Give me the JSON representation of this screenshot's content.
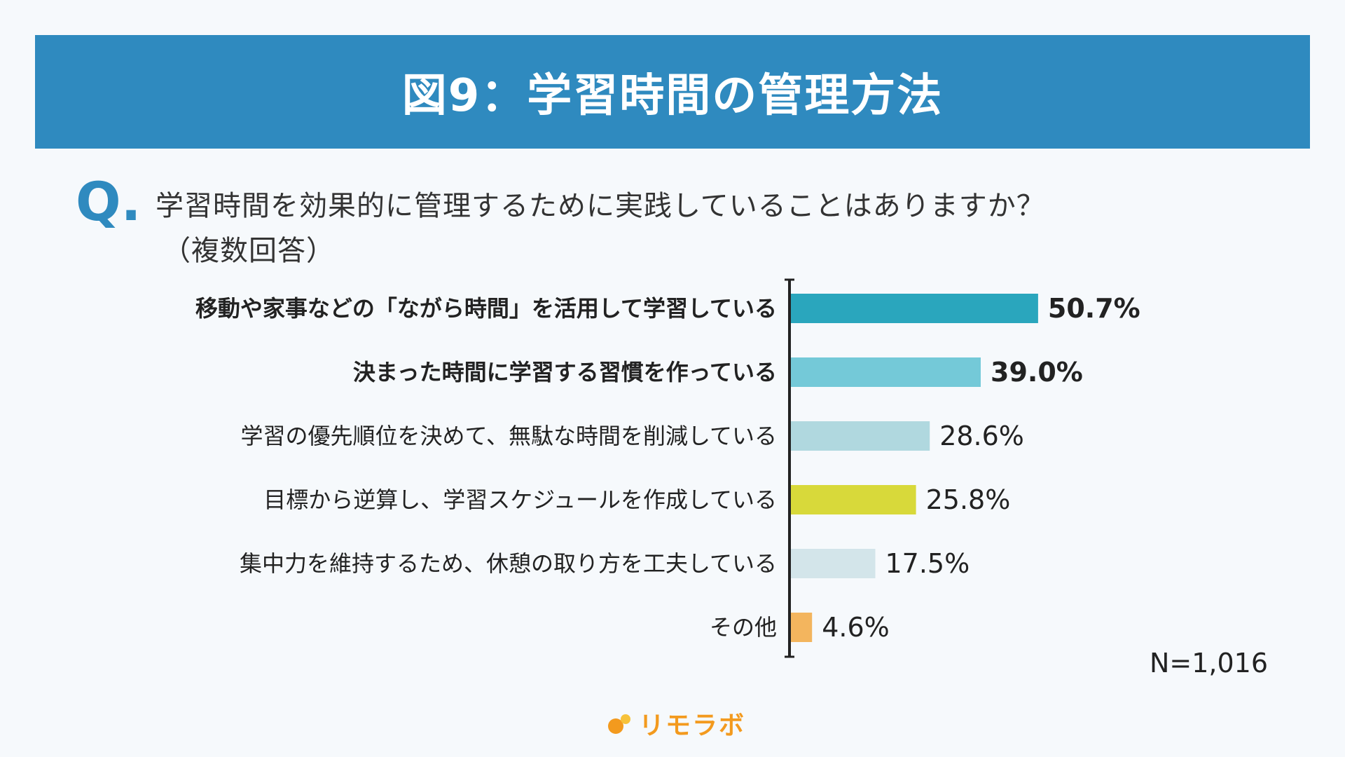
{
  "header": {
    "title": "図9：学習時間の管理方法"
  },
  "question": {
    "mark": "Q",
    "text": "学習時間を効果的に管理するために実践していることはありますか？",
    "note": "（複数回答）"
  },
  "chart_data": {
    "type": "bar",
    "orientation": "horizontal",
    "categories": [
      "移動や家事などの「ながら時間」を活用して学習している",
      "決まった時間に学習する習慣を作っている",
      "学習の優先順位を決めて、無駄な時間を削減している",
      "目標から逆算し、学習スケジュールを作成している",
      "集中力を維持するため、休憩の取り方を工夫している",
      "その他"
    ],
    "values": [
      50.7,
      39.0,
      28.6,
      25.8,
      17.5,
      4.6
    ],
    "value_labels": [
      "50.7%",
      "39.0%",
      "28.6%",
      "25.8%",
      "17.5%",
      "4.6%"
    ],
    "colors": [
      "#2aa6bd",
      "#74c9d8",
      "#b0d8df",
      "#d8d93a",
      "#d3e5ea",
      "#f3b55e"
    ],
    "bold_flags": [
      true,
      true,
      false,
      false,
      false,
      false
    ],
    "unit": "%",
    "grid": false
  },
  "sample": {
    "n_label": "N=1,016"
  },
  "brand": {
    "name": "リモラボ"
  }
}
